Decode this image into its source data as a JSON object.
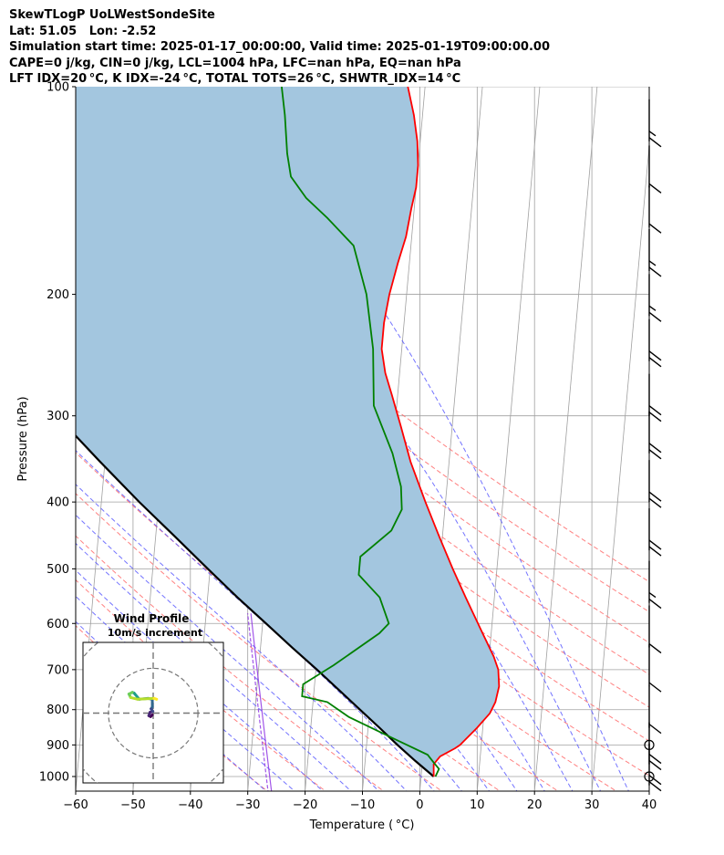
{
  "chart_data": {
    "type": "skew-t log-p",
    "title_lines": [
      "SkewTLogP UoLWestSondeSite",
      "Lat: 51.05   Lon: -2.52",
      "Simulation start time: 2025-01-17_00:00:00, Valid time: 2025-01-19T09:00:00.00",
      "CAPE=0 j/kg, CIN=0 j/kg, LCL=1004 hPa, LFC=nan hPa, EQ=nan hPa",
      "LFT IDX=20 °C, K IDX=-24 °C, TOTAL TOTS=26 °C, SHWTR_IDX=14 °C"
    ],
    "xlabel": "Temperature ( °C)",
    "ylabel": "Pressure (hPa)",
    "xlim": [
      -60,
      40
    ],
    "ylim": [
      1050,
      100
    ],
    "x_ticks": [
      -60,
      -50,
      -40,
      -30,
      -20,
      -10,
      0,
      10,
      20,
      30,
      40
    ],
    "x_tick_labels": [
      "−60",
      "−50",
      "−40",
      "−30",
      "−20",
      "−10",
      "0",
      "10",
      "20",
      "30",
      "40"
    ],
    "y_ticks": [
      1000,
      900,
      800,
      700,
      600,
      500,
      400,
      300,
      200,
      100
    ],
    "y_tick_labels": [
      "1000",
      "900",
      "800",
      "700",
      "600",
      "500",
      "400",
      "300",
      "200",
      "100"
    ],
    "grid": true,
    "colors": {
      "temperature": "#ff0000",
      "dewpoint": "#008000",
      "parcel": "#000000",
      "shade": "#a3c6df",
      "dry_adiabat": "#ff6b6b",
      "moist_adiabat": "#5a5aff",
      "mixing_ratio": "#8a2be2",
      "isotherm": "#a0a0a0"
    },
    "series": [
      {
        "key": "temperature",
        "points": [
          [
            1000,
            2.2
          ],
          [
            960,
            2.0
          ],
          [
            935,
            3.0
          ],
          [
            910,
            5.5
          ],
          [
            900,
            6.3
          ],
          [
            850,
            9.0
          ],
          [
            810,
            11.0
          ],
          [
            780,
            11.8
          ],
          [
            740,
            12.2
          ],
          [
            700,
            11.8
          ],
          [
            670,
            10.8
          ],
          [
            620,
            8.5
          ],
          [
            550,
            5.0
          ],
          [
            500,
            2.3
          ],
          [
            450,
            -0.5
          ],
          [
            400,
            -3.5
          ],
          [
            350,
            -6.7
          ],
          [
            310,
            -9.0
          ],
          [
            280,
            -11.0
          ],
          [
            260,
            -12.5
          ],
          [
            240,
            -13.5
          ],
          [
            220,
            -13.5
          ],
          [
            200,
            -13.0
          ],
          [
            180,
            -12.0
          ],
          [
            165,
            -11.0
          ],
          [
            150,
            -10.5
          ],
          [
            140,
            -10.0
          ],
          [
            130,
            -10.0
          ],
          [
            120,
            -10.5
          ],
          [
            110,
            -11.5
          ],
          [
            100,
            -13.0
          ]
        ]
      },
      {
        "key": "dewpoint",
        "points": [
          [
            1000,
            2.5
          ],
          [
            975,
            3.0
          ],
          [
            955,
            2.0
          ],
          [
            930,
            0.8
          ],
          [
            880,
            -5.5
          ],
          [
            820,
            -13.5
          ],
          [
            780,
            -17.5
          ],
          [
            765,
            -22.0
          ],
          [
            735,
            -22.0
          ],
          [
            690,
            -17.0
          ],
          [
            620,
            -9.5
          ],
          [
            600,
            -8.0
          ],
          [
            550,
            -10.0
          ],
          [
            510,
            -14.0
          ],
          [
            480,
            -14.0
          ],
          [
            440,
            -9.0
          ],
          [
            410,
            -7.5
          ],
          [
            380,
            -8.0
          ],
          [
            340,
            -10.0
          ],
          [
            290,
            -14.0
          ],
          [
            240,
            -15.0
          ],
          [
            200,
            -17.0
          ],
          [
            170,
            -20.0
          ],
          [
            155,
            -25.0
          ],
          [
            145,
            -29.0
          ],
          [
            135,
            -32.0
          ],
          [
            125,
            -33.0
          ],
          [
            110,
            -34.0
          ],
          [
            100,
            -35.0
          ]
        ]
      },
      {
        "key": "parcel",
        "points": [
          [
            1000,
            2.2
          ],
          [
            950,
            -1.2
          ],
          [
            900,
            -4.6
          ],
          [
            850,
            -8.0
          ],
          [
            800,
            -11.7
          ],
          [
            750,
            -15.6
          ],
          [
            700,
            -19.8
          ],
          [
            650,
            -24.5
          ],
          [
            600,
            -29.4
          ],
          [
            550,
            -34.8
          ],
          [
            500,
            -40.4
          ],
          [
            450,
            -46.5
          ],
          [
            400,
            -53.4
          ],
          [
            350,
            -60.8
          ],
          [
            300,
            -69.1
          ],
          [
            250,
            -78.3
          ],
          [
            200,
            -88.5
          ],
          [
            150,
            -100.5
          ],
          [
            100,
            -115.5
          ]
        ]
      }
    ],
    "reference_lines": {
      "isotherms_C": [
        -140,
        -130,
        -120,
        -110,
        -100,
        -90,
        -80,
        -70,
        -60,
        -50,
        -40,
        -30,
        -20,
        -10,
        0,
        10,
        20,
        30,
        40
      ],
      "dry_adiabats_theta_C": [
        -30,
        -20,
        -10,
        0,
        10,
        20,
        30,
        40,
        50,
        60,
        70,
        80,
        90,
        100
      ],
      "moist_adiabats_start_C": [
        -30,
        -25,
        -20,
        -15,
        -10,
        -5,
        0,
        5,
        10,
        15,
        20,
        25,
        30,
        35
      ],
      "mixing_ratio_line_at_1000hPa_C": -27.0
    },
    "wind_barbs": [
      {
        "p": 1030,
        "glyph": "barb",
        "barbs": 2
      },
      {
        "p": 1000,
        "glyph": "calm"
      },
      {
        "p": 960,
        "glyph": "barb",
        "barbs": 2
      },
      {
        "p": 900,
        "glyph": "calm"
      },
      {
        "p": 850,
        "glyph": "barb",
        "barbs": 1
      },
      {
        "p": 740,
        "glyph": "barb",
        "barbs": 1
      },
      {
        "p": 650,
        "glyph": "barb",
        "barbs": 1
      },
      {
        "p": 560,
        "glyph": "barb",
        "barbs": 1.5
      },
      {
        "p": 470,
        "glyph": "barb",
        "barbs": 2
      },
      {
        "p": 400,
        "glyph": "barb",
        "barbs": 2
      },
      {
        "p": 340,
        "glyph": "barb",
        "barbs": 2
      },
      {
        "p": 300,
        "glyph": "barb",
        "barbs": 2
      },
      {
        "p": 250,
        "glyph": "barb",
        "barbs": 2
      },
      {
        "p": 215,
        "glyph": "barb",
        "barbs": 1.5
      },
      {
        "p": 185,
        "glyph": "barb",
        "barbs": 1.5
      },
      {
        "p": 160,
        "glyph": "barb",
        "barbs": 1
      },
      {
        "p": 140,
        "glyph": "barb",
        "barbs": 1
      },
      {
        "p": 120,
        "glyph": "barb",
        "barbs": 1.5
      }
    ],
    "hodograph": {
      "title": "Wind Profile",
      "subtitle": "10m/s increment",
      "ring_step_ms": 10,
      "rings": 3,
      "extent_ms": 40,
      "trace_uv": [
        [
          -0.5,
          -1.0
        ],
        [
          -1.5,
          -2.0
        ],
        [
          -2.5,
          -1.5
        ],
        [
          -1.8,
          0.5
        ],
        [
          -0.2,
          1.0
        ],
        [
          -1.2,
          2.5
        ],
        [
          -0.5,
          3.5
        ],
        [
          -0.5,
          8.0
        ],
        [
          -3.0,
          8.5
        ],
        [
          -8.0,
          8.0
        ],
        [
          -11.0,
          11.5
        ],
        [
          -12.0,
          12.0
        ],
        [
          -14.0,
          11.0
        ],
        [
          -13.0,
          9.0
        ],
        [
          -9.0,
          8.0
        ],
        [
          0.5,
          8.5
        ],
        [
          2.0,
          8.0
        ]
      ]
    }
  }
}
